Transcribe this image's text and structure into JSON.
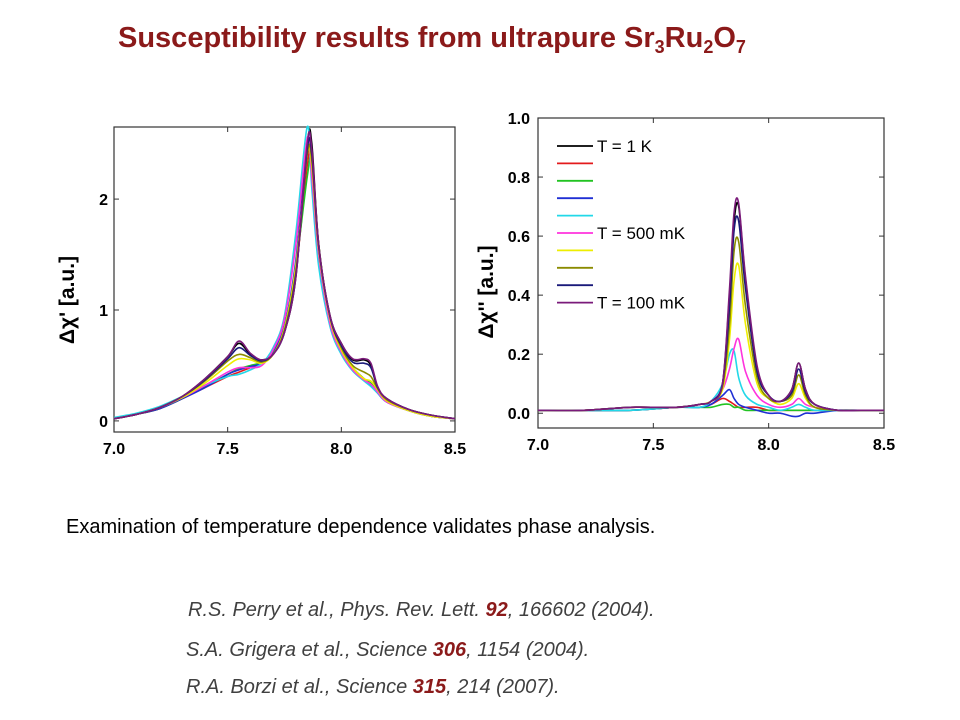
{
  "title": {
    "text": "Susceptibility results from ultrapure Sr",
    "formula": [
      {
        "base": "",
        "sub": "3"
      },
      {
        "base": "Ru",
        "sub": "2"
      },
      {
        "base": "O",
        "sub": "7"
      }
    ]
  },
  "statement": "Examination of temperature dependence validates phase analysis.",
  "references": [
    {
      "pre": "R.S. Perry et al., Phys. Rev. Lett. ",
      "vol": "92",
      "post": ", 166602  (2004)."
    },
    {
      "pre": "S.A. Grigera et al., Science ",
      "vol": "306",
      "post": ", 1154 (2004)."
    },
    {
      "pre": "R.A. Borzi et al., Science ",
      "vol": "315",
      "post": ", 214 (2007)."
    }
  ],
  "colors": {
    "title": "#8b1a1a",
    "ref_volume": "#8b1a1a",
    "series": [
      "#000000",
      "#e31a1c",
      "#22c322",
      "#1f2fd4",
      "#22d8e8",
      "#ff33dd",
      "#eeee00",
      "#8b8b00",
      "#1a1a7a",
      "#7a1a7a"
    ]
  },
  "chart_data": [
    {
      "type": "line",
      "title": "",
      "xlabel": "",
      "ylabel": "Δχ' [a.u.]",
      "xlim": [
        7.0,
        8.5
      ],
      "ylim": [
        -0.1,
        2.65
      ],
      "xticks": [
        "7.0",
        "7.5",
        "8.0",
        "8.5"
      ],
      "yticks": [
        "0",
        "1",
        "2"
      ],
      "x": [
        7.0,
        7.1,
        7.2,
        7.3,
        7.4,
        7.5,
        7.55,
        7.6,
        7.65,
        7.7,
        7.75,
        7.8,
        7.85,
        7.87,
        7.9,
        7.95,
        8.0,
        8.05,
        8.1,
        8.13,
        8.16,
        8.2,
        8.3,
        8.4,
        8.5
      ],
      "series": [
        {
          "values": [
            0.02,
            0.06,
            0.12,
            0.22,
            0.38,
            0.58,
            0.7,
            0.6,
            0.55,
            0.6,
            0.8,
            1.3,
            2.5,
            2.5,
            1.6,
            0.95,
            0.7,
            0.55,
            0.55,
            0.5,
            0.3,
            0.2,
            0.1,
            0.05,
            0.02
          ]
        },
        {
          "values": [
            0.02,
            0.06,
            0.11,
            0.2,
            0.3,
            0.4,
            0.44,
            0.48,
            0.52,
            0.6,
            0.82,
            1.35,
            2.3,
            2.4,
            1.6,
            0.92,
            0.64,
            0.48,
            0.38,
            0.32,
            0.26,
            0.18,
            0.09,
            0.04,
            0.02
          ]
        },
        {
          "values": [
            0.02,
            0.06,
            0.11,
            0.2,
            0.31,
            0.42,
            0.47,
            0.5,
            0.53,
            0.62,
            0.85,
            1.4,
            2.2,
            2.35,
            1.6,
            0.92,
            0.64,
            0.48,
            0.38,
            0.34,
            0.27,
            0.18,
            0.09,
            0.04,
            0.02
          ]
        },
        {
          "values": [
            0.02,
            0.06,
            0.11,
            0.2,
            0.3,
            0.42,
            0.46,
            0.49,
            0.52,
            0.63,
            0.86,
            1.45,
            2.5,
            2.25,
            1.5,
            0.9,
            0.62,
            0.47,
            0.37,
            0.32,
            0.25,
            0.17,
            0.09,
            0.04,
            0.02
          ]
        },
        {
          "values": [
            0.03,
            0.07,
            0.13,
            0.22,
            0.32,
            0.4,
            0.42,
            0.46,
            0.52,
            0.66,
            0.95,
            1.7,
            2.65,
            2.1,
            1.4,
            0.85,
            0.6,
            0.45,
            0.36,
            0.31,
            0.25,
            0.17,
            0.09,
            0.04,
            0.02
          ]
        },
        {
          "values": [
            0.02,
            0.06,
            0.12,
            0.21,
            0.32,
            0.44,
            0.48,
            0.48,
            0.5,
            0.64,
            0.92,
            1.6,
            2.55,
            2.2,
            1.5,
            0.88,
            0.62,
            0.46,
            0.37,
            0.33,
            0.26,
            0.17,
            0.09,
            0.04,
            0.02
          ]
        },
        {
          "values": [
            0.02,
            0.06,
            0.12,
            0.21,
            0.34,
            0.5,
            0.56,
            0.55,
            0.52,
            0.6,
            0.84,
            1.4,
            2.4,
            2.3,
            1.55,
            0.92,
            0.64,
            0.48,
            0.38,
            0.36,
            0.28,
            0.18,
            0.09,
            0.04,
            0.02
          ]
        },
        {
          "values": [
            0.02,
            0.06,
            0.12,
            0.22,
            0.36,
            0.54,
            0.6,
            0.57,
            0.53,
            0.6,
            0.82,
            1.35,
            2.4,
            2.35,
            1.58,
            0.94,
            0.66,
            0.5,
            0.44,
            0.4,
            0.29,
            0.19,
            0.1,
            0.05,
            0.02
          ]
        },
        {
          "values": [
            0.02,
            0.06,
            0.12,
            0.22,
            0.37,
            0.56,
            0.66,
            0.59,
            0.54,
            0.6,
            0.8,
            1.32,
            2.45,
            2.4,
            1.58,
            0.94,
            0.68,
            0.53,
            0.52,
            0.48,
            0.3,
            0.2,
            0.1,
            0.05,
            0.02
          ]
        },
        {
          "values": [
            0.02,
            0.06,
            0.12,
            0.22,
            0.38,
            0.58,
            0.72,
            0.61,
            0.55,
            0.6,
            0.8,
            1.3,
            2.5,
            2.45,
            1.6,
            0.95,
            0.7,
            0.56,
            0.56,
            0.52,
            0.31,
            0.2,
            0.1,
            0.05,
            0.02
          ]
        }
      ]
    },
    {
      "type": "line",
      "title": "",
      "xlabel": "",
      "ylabel": "Δχ'' [a.u.]",
      "xlim": [
        7.0,
        8.5
      ],
      "ylim": [
        -0.05,
        1.0
      ],
      "xticks": [
        "7.0",
        "7.5",
        "8.0",
        "8.5"
      ],
      "yticks": [
        "0.0",
        "0.2",
        "0.4",
        "0.6",
        "0.8",
        "1.0"
      ],
      "x": [
        7.0,
        7.2,
        7.4,
        7.6,
        7.7,
        7.75,
        7.8,
        7.83,
        7.85,
        7.87,
        7.9,
        7.95,
        8.0,
        8.05,
        8.1,
        8.13,
        8.16,
        8.2,
        8.3,
        8.4,
        8.5
      ],
      "series": [
        {
          "values": [
            0.01,
            0.01,
            0.02,
            0.02,
            0.03,
            0.04,
            0.1,
            0.4,
            0.65,
            0.7,
            0.45,
            0.15,
            0.06,
            0.04,
            0.08,
            0.17,
            0.08,
            0.03,
            0.01,
            0.01,
            0.01
          ]
        },
        {
          "values": [
            0.01,
            0.01,
            0.01,
            0.02,
            0.02,
            0.03,
            0.05,
            0.04,
            0.03,
            0.02,
            0.02,
            0.02,
            0.01,
            0.01,
            0.01,
            0.01,
            0.01,
            0.01,
            0.01,
            0.01,
            0.01
          ]
        },
        {
          "values": [
            0.01,
            0.01,
            0.01,
            0.02,
            0.02,
            0.02,
            0.03,
            0.03,
            0.02,
            0.02,
            0.01,
            0.01,
            0.01,
            0.01,
            0.01,
            0.01,
            0.01,
            0.01,
            0.01,
            0.01,
            0.01
          ]
        },
        {
          "values": [
            0.01,
            0.01,
            0.01,
            0.02,
            0.02,
            0.03,
            0.06,
            0.08,
            0.05,
            0.03,
            0.02,
            0.01,
            0.0,
            0.0,
            -0.01,
            -0.01,
            0.0,
            0.0,
            0.01,
            0.01,
            0.01
          ]
        },
        {
          "values": [
            0.01,
            0.01,
            0.01,
            0.02,
            0.02,
            0.04,
            0.1,
            0.2,
            0.21,
            0.12,
            0.06,
            0.03,
            0.02,
            0.01,
            0.02,
            0.03,
            0.02,
            0.01,
            0.01,
            0.01,
            0.01
          ]
        },
        {
          "values": [
            0.01,
            0.01,
            0.02,
            0.02,
            0.03,
            0.04,
            0.08,
            0.15,
            0.22,
            0.25,
            0.14,
            0.06,
            0.03,
            0.02,
            0.03,
            0.05,
            0.03,
            0.02,
            0.01,
            0.01,
            0.01
          ]
        },
        {
          "values": [
            0.01,
            0.01,
            0.02,
            0.02,
            0.03,
            0.04,
            0.08,
            0.25,
            0.45,
            0.5,
            0.3,
            0.1,
            0.05,
            0.03,
            0.05,
            0.1,
            0.05,
            0.02,
            0.01,
            0.01,
            0.01
          ]
        },
        {
          "values": [
            0.01,
            0.01,
            0.02,
            0.02,
            0.03,
            0.04,
            0.09,
            0.3,
            0.55,
            0.58,
            0.36,
            0.12,
            0.05,
            0.04,
            0.06,
            0.13,
            0.06,
            0.02,
            0.01,
            0.01,
            0.01
          ]
        },
        {
          "values": [
            0.01,
            0.01,
            0.02,
            0.02,
            0.03,
            0.04,
            0.1,
            0.36,
            0.62,
            0.65,
            0.42,
            0.14,
            0.06,
            0.04,
            0.07,
            0.15,
            0.07,
            0.03,
            0.01,
            0.01,
            0.01
          ]
        },
        {
          "values": [
            0.01,
            0.01,
            0.02,
            0.02,
            0.03,
            0.04,
            0.1,
            0.42,
            0.68,
            0.71,
            0.46,
            0.16,
            0.06,
            0.04,
            0.08,
            0.17,
            0.08,
            0.03,
            0.01,
            0.01,
            0.01
          ]
        }
      ],
      "legend": {
        "placement": "top-left",
        "labels": [
          "T = 1 K",
          "",
          "",
          "",
          "",
          "T = 500 mK",
          "",
          "",
          "",
          "T = 100 mK"
        ]
      }
    }
  ]
}
